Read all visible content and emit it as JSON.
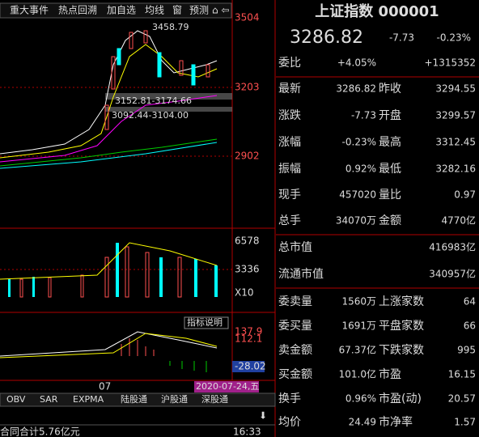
{
  "toolbar": [
    "重大事件",
    "热点回溯",
    "加自选",
    "均线",
    "窗",
    "预测"
  ],
  "price_axis": [
    "3504",
    "3203",
    "2902"
  ],
  "annotations": {
    "high": "3458.79",
    "zone1": "3152.81-3174.66",
    "zone2": "3092.44-3104.00"
  },
  "volume_axis": [
    "6578",
    "3336",
    "X10"
  ],
  "indicator": {
    "button": "指标说明",
    "levels": [
      "137.9",
      "112.1"
    ],
    "current": "-28.02"
  },
  "date_bar": {
    "month": "07",
    "cursor": "2020-07-24,五"
  },
  "tabs": [
    "OBV",
    "SAR",
    "EXPMA",
    "陆股通",
    "沪股通",
    "深股通"
  ],
  "status": {
    "text": "合同合计5.76亿元",
    "time": "16:33"
  },
  "quote": {
    "title": "上证指数 000001",
    "price": "3286.82",
    "change": "-7.73",
    "pct": "-0.23%",
    "ratio_label": "委比",
    "ratio_pct": "+4.05%",
    "ratio_diff": "+1315352",
    "rows": [
      {
        "cells": [
          "最新",
          "3286.82",
          "昨收",
          "3294.55"
        ],
        "colors": [
          "#00e000",
          "#ffffff"
        ]
      },
      {
        "cells": [
          "涨跌",
          "-7.73",
          "开盘",
          "3299.57"
        ],
        "colors": [
          "#00e000",
          "#ff5050"
        ]
      },
      {
        "cells": [
          "涨幅",
          "-0.23%",
          "最高",
          "3312.45"
        ],
        "colors": [
          "#00e000",
          "#ff5050"
        ]
      },
      {
        "cells": [
          "振幅",
          "0.92%",
          "最低",
          "3282.16"
        ],
        "colors": [
          "#40e0ff",
          "#00e000"
        ]
      },
      {
        "cells": [
          "现手",
          "457020",
          "量比",
          "0.97"
        ],
        "colors": [
          "#40e0ff",
          "#ffff40"
        ]
      },
      {
        "cells": [
          "总手",
          "34070万",
          "金额",
          "4770亿"
        ],
        "colors": [
          "#ffffff",
          "#40e0ff"
        ]
      },
      {
        "cells": [
          "总市值",
          "416983亿"
        ],
        "colors": [
          "#40e0ff"
        ]
      },
      {
        "cells": [
          "流通市值",
          "340957亿"
        ],
        "colors": [
          "#40e0ff"
        ]
      },
      {
        "cells": [
          "委卖量",
          "1560万",
          "上涨家数",
          "64"
        ],
        "colors": [
          "#ffff40",
          "#ff5050"
        ]
      },
      {
        "cells": [
          "委买量",
          "1691万",
          "平盘家数",
          "66"
        ],
        "colors": [
          "#ff5050",
          "#ffffff"
        ]
      },
      {
        "cells": [
          "卖金额",
          "67.37亿",
          "下跌家数",
          "995"
        ],
        "colors": [
          "#40e0ff",
          "#00e000"
        ]
      },
      {
        "cells": [
          "买金额",
          "101.0亿",
          "市盈",
          "16.15"
        ],
        "colors": [
          "#40e0ff",
          "#ffffff"
        ]
      },
      {
        "cells": [
          "换手",
          "0.96%",
          "市盈(动)",
          "20.57"
        ],
        "colors": [
          "#40e0ff",
          "#ffffff"
        ]
      },
      {
        "cells": [
          "均价",
          "24.49",
          "市净率",
          "1.57"
        ],
        "colors": [
          "#ffff40",
          "#ffffff"
        ]
      }
    ]
  }
}
